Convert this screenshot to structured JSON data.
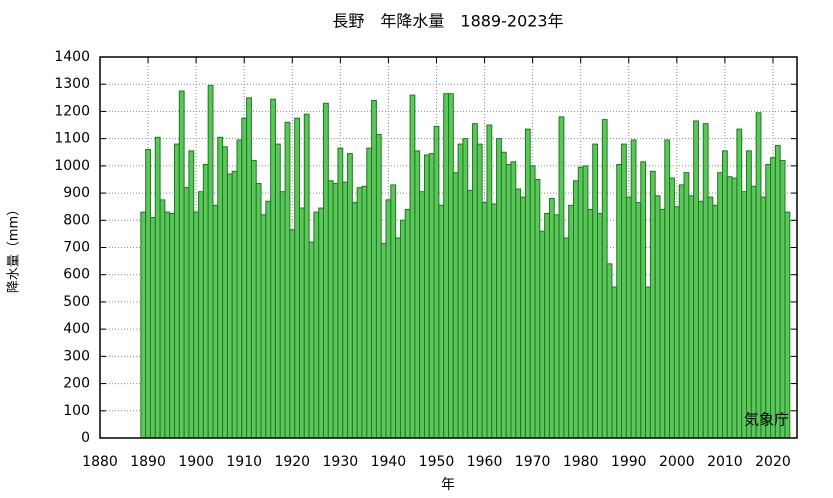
{
  "chart_data": {
    "type": "bar",
    "title": "長野　年降水量　1889-2023年",
    "x_label": "年",
    "y_label": "降水量（mm）",
    "annotation": "気象庁",
    "color": "#5cc65c",
    "edge_color": "#1b7a1b",
    "grid": true,
    "xlim": [
      1880,
      2025
    ],
    "xticks": [
      1880,
      1890,
      1900,
      1910,
      1920,
      1930,
      1940,
      1950,
      1960,
      1970,
      1980,
      1990,
      2000,
      2010,
      2020
    ],
    "ylim": [
      0,
      1400
    ],
    "yticks": [
      0,
      100,
      200,
      300,
      400,
      500,
      600,
      700,
      800,
      900,
      1000,
      1100,
      1200,
      1300,
      1400
    ],
    "x": [
      1889,
      1890,
      1891,
      1892,
      1893,
      1894,
      1895,
      1896,
      1897,
      1898,
      1899,
      1900,
      1901,
      1902,
      1903,
      1904,
      1905,
      1906,
      1907,
      1908,
      1909,
      1910,
      1911,
      1912,
      1913,
      1914,
      1915,
      1916,
      1917,
      1918,
      1919,
      1920,
      1921,
      1922,
      1923,
      1924,
      1925,
      1926,
      1927,
      1928,
      1929,
      1930,
      1931,
      1932,
      1933,
      1934,
      1935,
      1936,
      1937,
      1938,
      1939,
      1940,
      1941,
      1942,
      1943,
      1944,
      1945,
      1946,
      1947,
      1948,
      1949,
      1950,
      1951,
      1952,
      1953,
      1954,
      1955,
      1956,
      1957,
      1958,
      1959,
      1960,
      1961,
      1962,
      1963,
      1964,
      1965,
      1966,
      1967,
      1968,
      1969,
      1970,
      1971,
      1972,
      1973,
      1974,
      1975,
      1976,
      1977,
      1978,
      1979,
      1980,
      1981,
      1982,
      1983,
      1984,
      1985,
      1986,
      1987,
      1988,
      1989,
      1990,
      1991,
      1992,
      1993,
      1994,
      1995,
      1996,
      1997,
      1998,
      1999,
      2000,
      2001,
      2002,
      2003,
      2004,
      2005,
      2006,
      2007,
      2008,
      2009,
      2010,
      2011,
      2012,
      2013,
      2014,
      2015,
      2016,
      2017,
      2018,
      2019,
      2020,
      2021,
      2022,
      2023
    ],
    "values": [
      830,
      1060,
      810,
      1105,
      875,
      830,
      825,
      1080,
      1275,
      920,
      1055,
      830,
      905,
      1005,
      1295,
      855,
      1105,
      1070,
      970,
      980,
      1095,
      1175,
      1250,
      1020,
      935,
      820,
      870,
      1245,
      1080,
      905,
      1160,
      765,
      1175,
      845,
      1190,
      720,
      830,
      845,
      1230,
      945,
      935,
      1065,
      940,
      1045,
      865,
      920,
      925,
      1065,
      1240,
      1115,
      715,
      875,
      930,
      735,
      800,
      840,
      1260,
      1055,
      905,
      1040,
      1045,
      1145,
      855,
      1265,
      1265,
      975,
      1080,
      1100,
      910,
      1155,
      1080,
      865,
      1150,
      860,
      1100,
      1050,
      1005,
      1015,
      915,
      885,
      1135,
      1000,
      950,
      760,
      825,
      880,
      820,
      1180,
      735,
      855,
      945,
      995,
      1000,
      840,
      1080,
      825,
      1170,
      640,
      555,
      1005,
      1080,
      885,
      1095,
      865,
      1015,
      555,
      980,
      890,
      840,
      1095,
      955,
      850,
      930,
      975,
      890,
      1165,
      870,
      1155,
      885,
      855,
      975,
      1055,
      960,
      955,
      1135,
      905,
      1055,
      925,
      1195,
      885,
      1005,
      1030,
      1075,
      1020,
      830
    ]
  }
}
